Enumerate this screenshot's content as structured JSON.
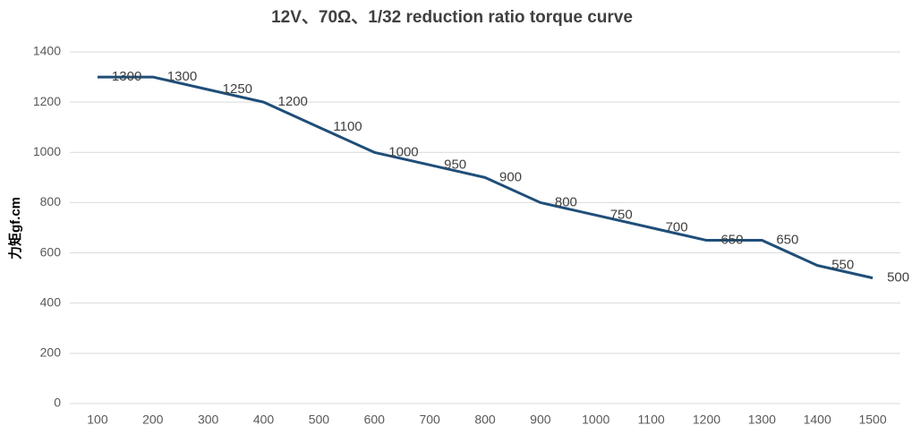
{
  "chart_data": {
    "type": "line",
    "title": "12V、70Ω、1/32 reduction ratio torque curve",
    "y_label": "力矩gf.cm",
    "categories": [
      "100",
      "200",
      "300",
      "400",
      "500",
      "600",
      "700",
      "800",
      "900",
      "1000",
      "1100",
      "1200",
      "1300",
      "1400",
      "1500"
    ],
    "series": [
      {
        "name": "torque",
        "color": "#1f4e79",
        "values": [
          1300,
          1300,
          1250,
          1200,
          1100,
          1000,
          950,
          900,
          800,
          750,
          700,
          650,
          650,
          550,
          500
        ]
      }
    ],
    "ylim": [
      0,
      1400
    ],
    "yticks": [
      0,
      200,
      400,
      600,
      800,
      1000,
      1200,
      1400
    ],
    "grid": true,
    "data_labels": true
  }
}
